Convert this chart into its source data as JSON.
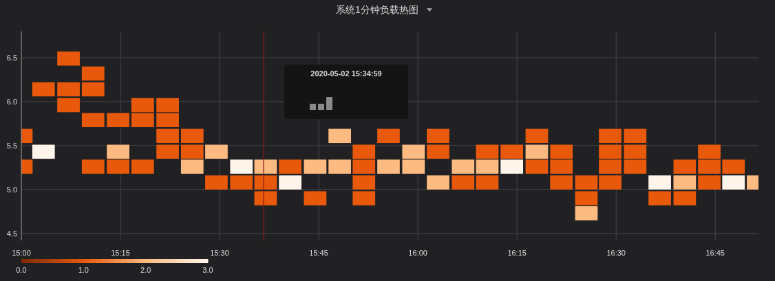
{
  "chart_data": {
    "type": "scatter",
    "title": "系统1分钟负载热图",
    "marker": "square",
    "grid": true,
    "x": [
      15.0,
      15.0,
      15.056,
      15.056,
      15.119,
      15.119,
      15.119,
      15.181,
      15.181,
      15.181,
      15.181,
      15.244,
      15.244,
      15.244,
      15.306,
      15.306,
      15.306,
      15.369,
      15.369,
      15.369,
      15.369,
      15.431,
      15.431,
      15.431,
      15.492,
      15.492,
      15.555,
      15.555,
      15.616,
      15.616,
      15.616,
      15.678,
      15.678,
      15.741,
      15.741,
      15.803,
      15.803,
      15.864,
      15.864,
      15.864,
      15.864,
      15.926,
      15.926,
      15.989,
      15.989,
      16.051,
      16.051,
      16.051,
      16.114,
      16.114,
      16.175,
      16.175,
      16.175,
      16.237,
      16.237,
      16.3,
      16.3,
      16.3,
      16.362,
      16.362,
      16.362,
      16.425,
      16.425,
      16.425,
      16.485,
      16.485,
      16.485,
      16.485,
      16.548,
      16.548,
      16.548,
      16.61,
      16.61,
      16.673,
      16.673,
      16.673,
      16.735,
      16.735,
      16.735,
      16.796,
      16.796,
      16.858
    ],
    "values": [
      5.61,
      5.26,
      6.14,
      5.43,
      6.49,
      6.14,
      5.96,
      6.32,
      6.14,
      5.79,
      5.26,
      5.79,
      5.43,
      5.26,
      5.96,
      5.79,
      5.26,
      5.96,
      5.79,
      5.61,
      5.43,
      5.61,
      5.43,
      5.26,
      5.43,
      5.08,
      5.26,
      5.08,
      5.26,
      5.08,
      4.9,
      5.26,
      5.08,
      5.26,
      4.9,
      5.61,
      5.26,
      5.43,
      5.26,
      5.08,
      4.9,
      5.61,
      5.26,
      5.43,
      5.26,
      5.61,
      5.43,
      5.08,
      5.26,
      5.08,
      5.43,
      5.26,
      5.08,
      5.43,
      5.26,
      5.61,
      5.43,
      5.26,
      5.43,
      5.26,
      5.08,
      5.08,
      4.9,
      4.73,
      5.61,
      5.43,
      5.26,
      5.08,
      5.61,
      5.43,
      5.26,
      5.08,
      4.9,
      5.26,
      5.08,
      4.9,
      5.43,
      5.26,
      5.08,
      5.26,
      5.08,
      5.08
    ],
    "cvalues": [
      1,
      1,
      1,
      3,
      1,
      1,
      1,
      1,
      1,
      1,
      1,
      1,
      2,
      1,
      1,
      1,
      1,
      1,
      1,
      1,
      1,
      1,
      1,
      2,
      2,
      1,
      3,
      1,
      2,
      1,
      1,
      1,
      3,
      2,
      1,
      2,
      2,
      1,
      1,
      1,
      1,
      1,
      2,
      2,
      2,
      1,
      1,
      2,
      2,
      1,
      1,
      2,
      1,
      1,
      3,
      1,
      2,
      1,
      1,
      1,
      1,
      1,
      1,
      2,
      1,
      1,
      1,
      1,
      1,
      1,
      1,
      3,
      1,
      1,
      2,
      1,
      1,
      1,
      1,
      1,
      3,
      2
    ],
    "xlim": [
      15.0,
      16.859
    ],
    "ylim": [
      4.42,
      6.8
    ],
    "xticks": [
      {
        "value": 15.0,
        "label": "15:00"
      },
      {
        "value": 15.25,
        "label": "15:15"
      },
      {
        "value": 15.5,
        "label": "15:30"
      },
      {
        "value": 15.75,
        "label": "15:45"
      },
      {
        "value": 16.0,
        "label": "16:00"
      },
      {
        "value": 16.25,
        "label": "16:15"
      },
      {
        "value": 16.5,
        "label": "16:30"
      },
      {
        "value": 16.75,
        "label": "16:45"
      }
    ],
    "yticks": [
      4.5,
      {
        "value": 5.0,
        "label": "5.0"
      },
      5.5,
      {
        "value": 6.0,
        "label": "6.0"
      },
      6.5
    ],
    "clim": [
      0,
      3
    ],
    "cticks": [
      {
        "value": 0,
        "label": "0.0"
      },
      {
        "value": 1,
        "label": "1.0"
      },
      {
        "value": 2,
        "label": "2.0"
      },
      {
        "value": 3,
        "label": "3.0"
      }
    ],
    "ref_lines": [
      {
        "axis": "x",
        "value": 15.611,
        "color": "#8b1c1c"
      }
    ],
    "annotations": [
      "2020-05-02 15:34:59"
    ]
  }
}
